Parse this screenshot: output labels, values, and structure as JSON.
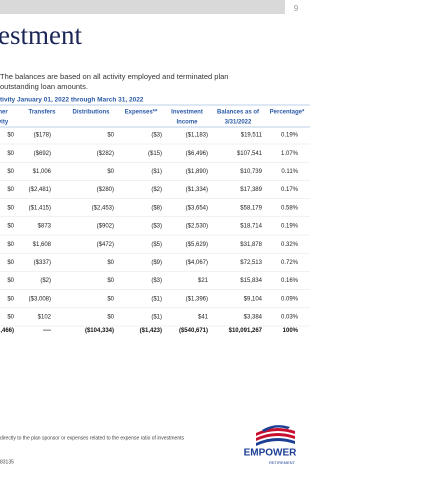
{
  "header": {
    "page_number": "9",
    "title": "estment"
  },
  "intro": [
    "The balances are based on all activity employed and terminated plan",
    "outstanding loan amounts."
  ],
  "table": {
    "caption": "tivity January 01, 2022 through March 31, 2022",
    "columns": [
      [
        "ner",
        "vity"
      ],
      [
        "Transfers"
      ],
      [
        "Distributions"
      ],
      [
        "Expenses**"
      ],
      [
        "Investment",
        "Income"
      ],
      [
        "Balances as of",
        "3/31/2022"
      ],
      [
        "Percentage*"
      ]
    ],
    "rows": [
      [
        "$0",
        "($178)",
        "$0",
        "($3)",
        "($1,183)",
        "$19,511",
        "0.19%"
      ],
      [
        "$0",
        "($692)",
        "($282)",
        "($15)",
        "($6,496)",
        "$107,541",
        "1.07%"
      ],
      [
        "$0",
        "$1,006",
        "$0",
        "($1)",
        "($1,890)",
        "$10,739",
        "0.11%"
      ],
      [
        "$0",
        "($2,481)",
        "($280)",
        "($2)",
        "($1,334)",
        "$17,389",
        "0.17%"
      ],
      [
        "$0",
        "($1,415)",
        "($2,453)",
        "($8)",
        "($3,654)",
        "$58,179",
        "0.58%"
      ],
      [
        "$0",
        "$873",
        "($902)",
        "($3)",
        "($2,530)",
        "$18,714",
        "0.19%"
      ],
      [
        "$0",
        "$1,608",
        "($472)",
        "($5)",
        "($5,629)",
        "$31,878",
        "0.32%"
      ],
      [
        "$0",
        "($337)",
        "$0",
        "($9)",
        "($4,067)",
        "$72,513",
        "0.72%"
      ],
      [
        "$0",
        "($2)",
        "$0",
        "($3)",
        "$21",
        "$15,834",
        "0.16%"
      ],
      [
        "$0",
        "($3,008)",
        "$0",
        "($1)",
        "($1,396)",
        "$9,104",
        "0.09%"
      ],
      [
        "$0",
        "$102",
        "$0",
        "($1)",
        "$41",
        "$3,384",
        "0.03%"
      ]
    ],
    "total": [
      ",466)",
      "----",
      "($104,334)",
      "($1,423)",
      "($540,671)",
      "$10,091,267",
      "100%"
    ]
  },
  "footer": {
    "note": "directly to the plan sponsor or expenses related to the expense ratio of investments",
    "code": "83135",
    "logo": {
      "name": "EMPOWER",
      "tagline": "RETIREMENT"
    }
  }
}
